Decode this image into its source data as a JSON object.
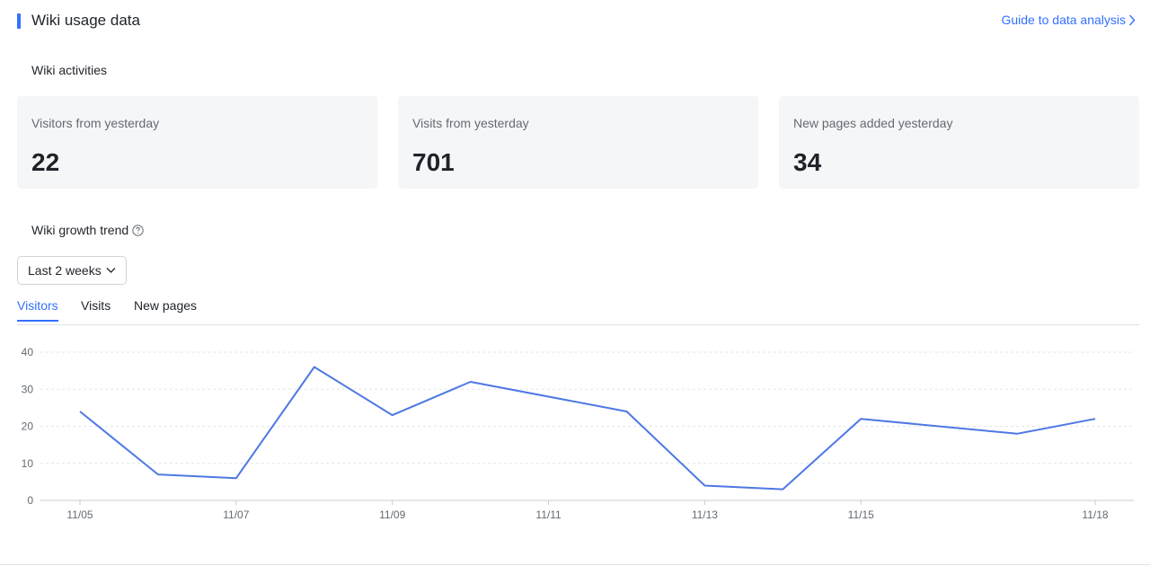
{
  "header": {
    "title": "Wiki usage data",
    "guide_link": "Guide to data analysis",
    "accent_color": "#3370ff"
  },
  "activities": {
    "label": "Wiki activities",
    "cards": [
      {
        "label": "Visitors from yesterday",
        "value": "22"
      },
      {
        "label": "Visits from yesterday",
        "value": "701"
      },
      {
        "label": "New pages added yesterday",
        "value": "34"
      }
    ]
  },
  "trend": {
    "label": "Wiki growth trend",
    "help_icon": "question-circle-icon",
    "range_select": {
      "selected": "Last 2 weeks",
      "icon": "chevron-down-icon"
    },
    "tabs": [
      {
        "label": "Visitors",
        "active": true
      },
      {
        "label": "Visits",
        "active": false
      },
      {
        "label": "New pages",
        "active": false
      }
    ]
  },
  "chart_data": {
    "type": "line",
    "x": [
      "11/05",
      "11/06",
      "11/07",
      "11/08",
      "11/09",
      "11/10",
      "11/11",
      "11/12",
      "11/13",
      "11/14",
      "11/15",
      "11/16",
      "11/17",
      "11/18"
    ],
    "x_tick_labels": [
      "11/05",
      "11/07",
      "11/09",
      "11/11",
      "11/13",
      "11/15",
      "11/18"
    ],
    "series": [
      {
        "values": [
          24,
          7,
          6,
          36,
          23,
          32,
          null,
          24,
          4,
          3,
          22,
          null,
          18,
          22
        ],
        "color": "#4e78e3"
      }
    ],
    "y_ticks": [
      0,
      10,
      20,
      30,
      40
    ],
    "ylim": [
      0,
      40
    ],
    "grid": true,
    "title": "",
    "xlabel": "",
    "ylabel": ""
  }
}
